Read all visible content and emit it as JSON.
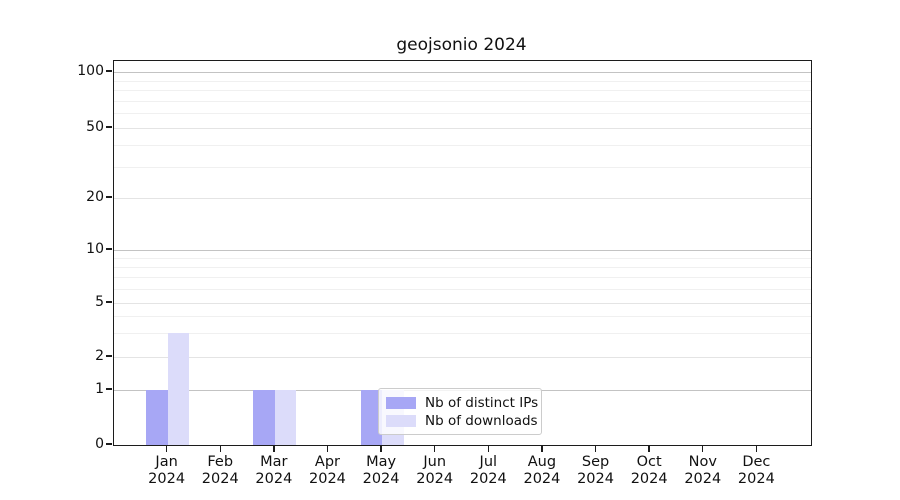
{
  "chart_data": {
    "type": "bar",
    "title": "geojsonio 2024",
    "months": [
      "Jan",
      "Feb",
      "Mar",
      "Apr",
      "May",
      "Jun",
      "Jul",
      "Aug",
      "Sep",
      "Oct",
      "Nov",
      "Dec"
    ],
    "year": "2024",
    "series": [
      {
        "name": "Nb of distinct IPs",
        "color": "#a7a7f5",
        "values": [
          1,
          0,
          1,
          0,
          1,
          0,
          0,
          0,
          0,
          0,
          0,
          0
        ]
      },
      {
        "name": "Nb of downloads",
        "color": "#dcdcfa",
        "values": [
          3,
          0,
          1,
          0,
          1,
          0,
          0,
          0,
          0,
          0,
          0,
          0
        ]
      }
    ],
    "y_ticks": [
      0,
      1,
      2,
      5,
      10,
      20,
      50,
      100
    ],
    "y_major_gridline_values": [
      1,
      10,
      100
    ],
    "y_minor_gridline_values": [
      3,
      4,
      6,
      7,
      8,
      9,
      30,
      40,
      60,
      70,
      80,
      90
    ],
    "y_axis_range": [
      0,
      100
    ],
    "scale": "symlog",
    "grid": true,
    "legend": {
      "position": "lower-center",
      "items": [
        "Nb of distinct IPs",
        "Nb of downloads"
      ]
    },
    "xlabel": "",
    "ylabel": ""
  }
}
